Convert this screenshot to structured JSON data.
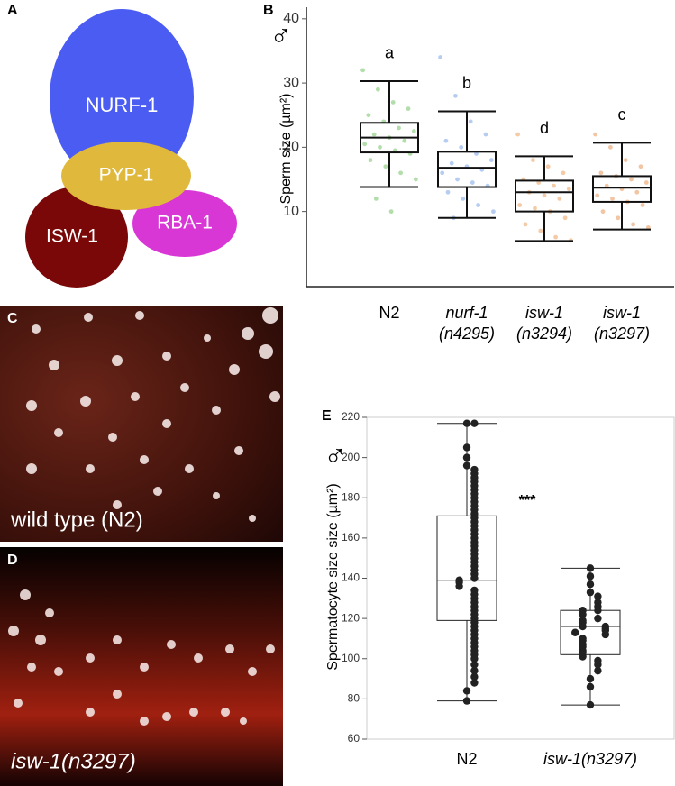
{
  "panel_labels": [
    "A",
    "B",
    "C",
    "D",
    "E"
  ],
  "diagram": {
    "nodes": [
      {
        "label": "NURF-1"
      },
      {
        "label": "PYP-1"
      },
      {
        "label": "ISW-1"
      },
      {
        "label": "RBA-1"
      }
    ]
  },
  "images": [
    {
      "caption": "wild type (N2)"
    },
    {
      "caption": "isw-1(n3297)"
    }
  ],
  "chart_data": [
    {
      "type": "box",
      "y_label": "Sperm size (µm²)",
      "symbol": "♂",
      "categories": [
        "N2",
        "nurf-1 (n4295)",
        "isw-1 (n3294)",
        "isw-1 (n3297)"
      ],
      "category_italic": [
        false,
        true,
        true,
        true
      ],
      "letters": [
        "a",
        "b",
        "d",
        "c"
      ],
      "colors": [
        "#9ad38f",
        "#9dbcec",
        "#f2b98a",
        "#eeb184"
      ],
      "ylim": [
        -1.7,
        41.8
      ],
      "yticks": [
        10,
        20,
        30,
        40
      ],
      "boxes": [
        {
          "whisker_low": 13.8,
          "q1": 19.2,
          "median": 21.5,
          "q3": 23.8,
          "whisker_high": 30.3,
          "points": [
            32,
            29,
            27,
            26,
            25,
            24,
            23,
            22.5,
            22,
            21.5,
            21,
            20.5,
            20,
            19.5,
            19,
            18,
            17,
            16,
            15,
            12,
            10
          ]
        },
        {
          "whisker_low": 9.0,
          "q1": 13.8,
          "median": 16.8,
          "q3": 19.3,
          "whisker_high": 25.6,
          "points": [
            34,
            28,
            24,
            22,
            21,
            20,
            19,
            18,
            17.5,
            17,
            16.5,
            16,
            15,
            14.5,
            14,
            13,
            12,
            11,
            10,
            9
          ]
        },
        {
          "whisker_low": 5.4,
          "q1": 10.0,
          "median": 13.0,
          "q3": 14.8,
          "whisker_high": 18.6,
          "points": [
            22,
            18,
            17,
            16,
            15,
            14.5,
            14,
            13.5,
            13,
            12.5,
            12,
            11,
            10.5,
            10,
            9,
            8,
            7,
            6,
            5.5
          ]
        },
        {
          "whisker_low": 7.2,
          "q1": 11.5,
          "median": 13.7,
          "q3": 15.5,
          "whisker_high": 20.7,
          "points": [
            22,
            20,
            18,
            17,
            16,
            15.5,
            15,
            14.5,
            14,
            13.5,
            13,
            12.5,
            12,
            11.5,
            11,
            10,
            9,
            8,
            7.5
          ]
        }
      ]
    },
    {
      "type": "box",
      "y_label": "Spermatocyte size size (µm²)",
      "symbol": "♂",
      "annotation": "***",
      "categories": [
        "N2",
        "isw-1(n3297)"
      ],
      "category_italic": [
        false,
        true
      ],
      "ylim": [
        60,
        220
      ],
      "yticks": [
        60,
        80,
        100,
        120,
        140,
        160,
        180,
        200,
        220
      ],
      "color": "#222222",
      "boxes": [
        {
          "whisker_low": 79,
          "q1": 119,
          "median": 139,
          "q3": 171,
          "whisker_high": 217,
          "points": [
            217,
            217,
            205,
            200,
            196,
            194,
            192,
            190,
            188,
            186,
            184,
            182,
            180,
            178,
            176,
            174,
            172,
            170,
            168,
            166,
            164,
            162,
            160,
            158,
            156,
            154,
            152,
            150,
            148,
            146,
            144,
            142,
            140,
            139,
            138,
            136,
            134,
            132,
            130,
            128,
            126,
            124,
            122,
            120,
            118,
            116,
            114,
            112,
            110,
            108,
            106,
            104,
            102,
            100,
            97,
            94,
            91,
            88,
            84,
            79
          ]
        },
        {
          "whisker_low": 77,
          "q1": 102,
          "median": 116,
          "q3": 124,
          "whisker_high": 145,
          "points": [
            145,
            141,
            137,
            133,
            131,
            128,
            126,
            124,
            124,
            122,
            120,
            119,
            118,
            116,
            116,
            115,
            114,
            113,
            112,
            110,
            109,
            107,
            106,
            104,
            103,
            101,
            99,
            97,
            94,
            90,
            86,
            77
          ]
        }
      ]
    }
  ]
}
